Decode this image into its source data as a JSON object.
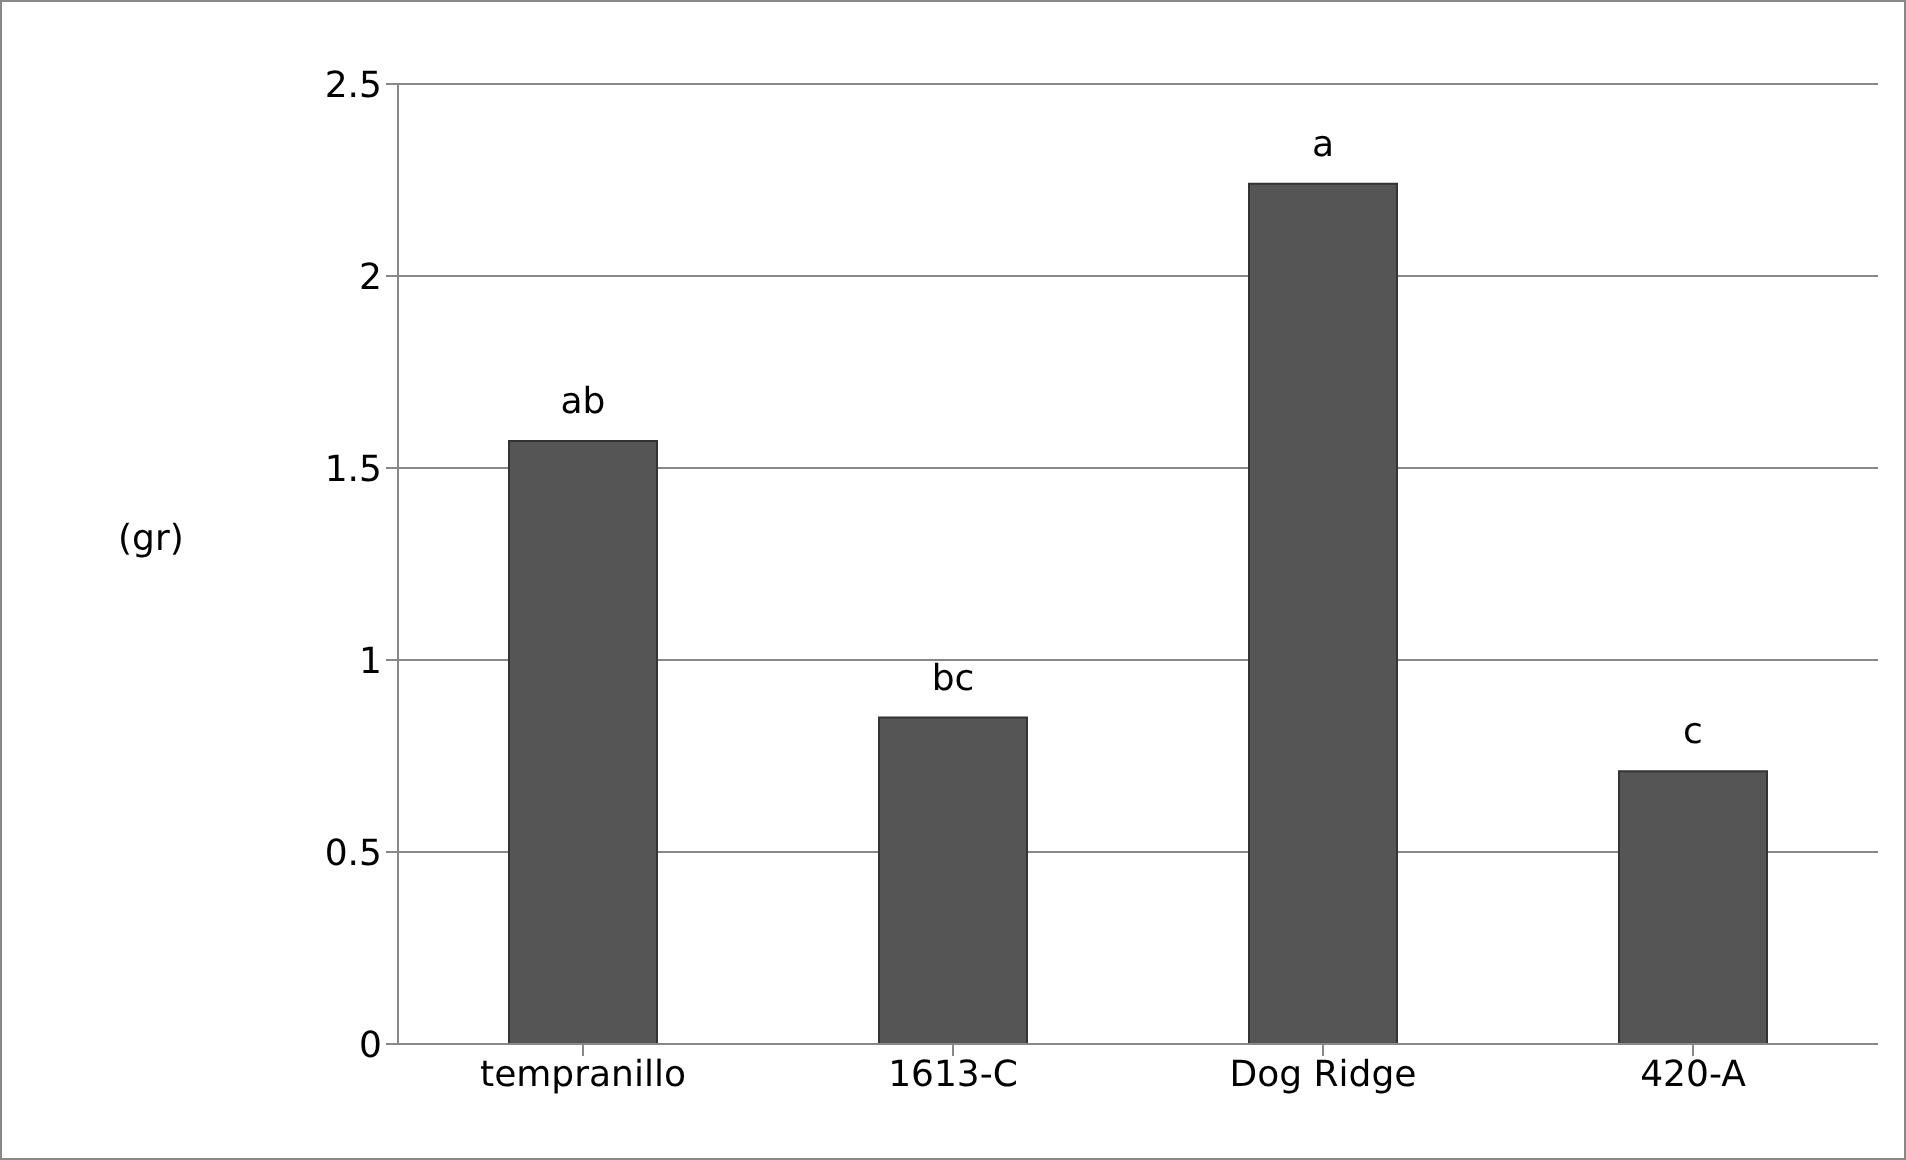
{
  "chart_data": {
    "type": "bar",
    "ylabel": "(gr)",
    "categories": [
      "tempranillo",
      "1613-C",
      "Dog Ridge",
      "420-A"
    ],
    "values": [
      1.57,
      0.85,
      2.24,
      0.71
    ],
    "color": "#555555",
    "ylim": [
      0,
      2.5
    ],
    "yticks": [
      0,
      0.5,
      1,
      1.5,
      2,
      2.5
    ],
    "grid": "y",
    "annotations": [
      {
        "text": "ab",
        "x": "tempranillo",
        "y": 1.57
      },
      {
        "text": "bc",
        "x": "1613-C",
        "y": 0.85
      },
      {
        "text": "a",
        "x": "Dog Ridge",
        "y": 2.24
      },
      {
        "text": "c",
        "x": "420-A",
        "y": 0.71
      }
    ]
  }
}
